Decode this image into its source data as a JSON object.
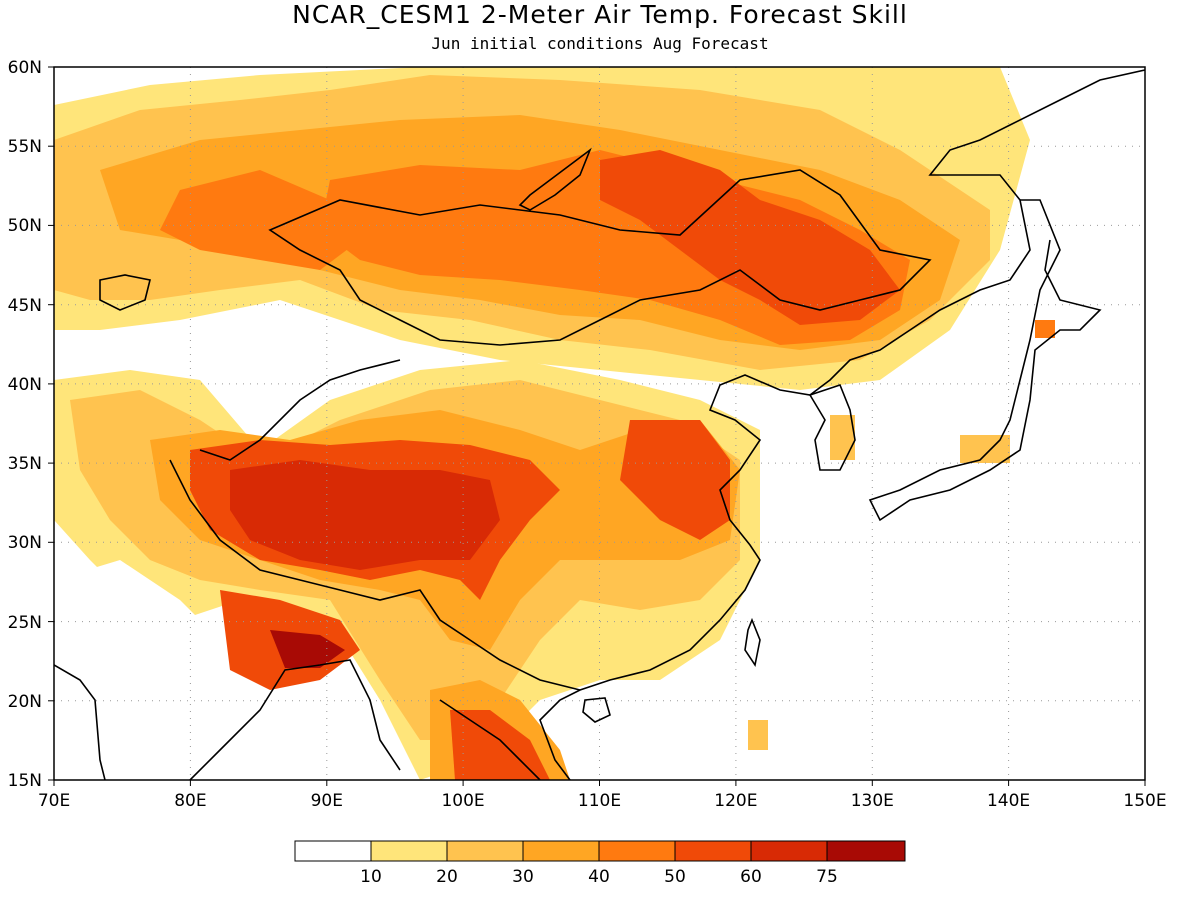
{
  "title": "NCAR_CESM1 2-Meter Air Temp. Forecast Skill",
  "subtitle": "Jun initial conditions  Aug Forecast",
  "map": {
    "lon_range": [
      70,
      150
    ],
    "lat_range": [
      15,
      60
    ],
    "lon_ticks": [
      "70E",
      "80E",
      "90E",
      "100E",
      "110E",
      "120E",
      "130E",
      "140E",
      "150E"
    ],
    "lat_ticks": [
      "15N",
      "20N",
      "25N",
      "30N",
      "35N",
      "40N",
      "45N",
      "50N",
      "55N",
      "60N"
    ],
    "gridlines": "dotted"
  },
  "colorbar": {
    "labels": [
      "10",
      "20",
      "30",
      "40",
      "50",
      "60",
      "75"
    ],
    "colors": [
      "#ffffff",
      "#ffe57a",
      "#ffc34f",
      "#ffa623",
      "#ff7a10",
      "#f04a08",
      "#d82a05",
      "#a80a05"
    ]
  }
}
